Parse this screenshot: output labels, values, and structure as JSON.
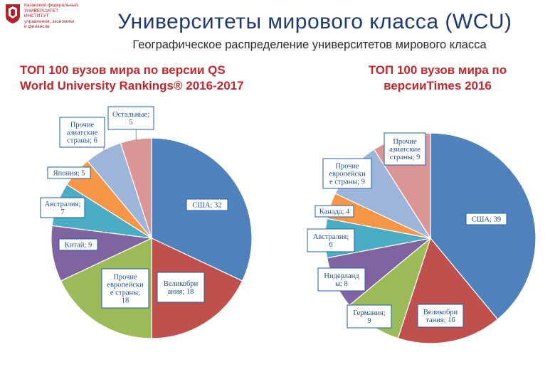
{
  "header": {
    "logo_text": "Казанский федеральный\nУНИВЕРСИТЕТ\nИНСТИТУТ\nуправления, экономики\nи финансов",
    "title": "Университеты мирового класса (WCU)",
    "subtitle": "Географическое распределение университетов мирового класса"
  },
  "colors": {
    "title": "#1f3a6e",
    "chart_title": "#c0282f",
    "label_border": "#1f5ea8",
    "slices": [
      "#4f81bd",
      "#c0504d",
      "#9bbb59",
      "#8064a2",
      "#4bacc6",
      "#f79646",
      "#9eb5da",
      "#d99694"
    ]
  },
  "chart_data": [
    {
      "type": "pie",
      "title": "ТОП 100 вузов мира по версии QS\nWorld University Rankings® 2016-2017",
      "slices": [
        {
          "label": "США",
          "value": 32,
          "data_label": "США; 32"
        },
        {
          "label": "Великобритания",
          "value": 18,
          "data_label": "Великобри\nания; 18"
        },
        {
          "label": "Прочие европейские страны",
          "value": 18,
          "data_label": "Прочие\nевропейски\nе страны;\n18"
        },
        {
          "label": "Китай",
          "value": 9,
          "data_label": "Китай; 9"
        },
        {
          "label": "Австралия",
          "value": 7,
          "data_label": "Австралия;\n7"
        },
        {
          "label": "Япония",
          "value": 5,
          "data_label": "Япония; 5"
        },
        {
          "label": "Прочие азиатские страны",
          "value": 6,
          "data_label": "Прочие\nазиатские\nстраны; 6"
        },
        {
          "label": "Остальные",
          "value": 5,
          "data_label": "Остальные;\n5"
        }
      ]
    },
    {
      "type": "pie",
      "title": "ТОП 100 вузов мира по\nверсииTimes 2016",
      "slices": [
        {
          "label": "США",
          "value": 39,
          "data_label": "США; 39"
        },
        {
          "label": "Великобритания",
          "value": 16,
          "data_label": "Великобри\nтания; 16"
        },
        {
          "label": "Германия",
          "value": 9,
          "data_label": "Германия;\n9"
        },
        {
          "label": "Нидерланды",
          "value": 8,
          "data_label": "Нидерланд\nы; 8"
        },
        {
          "label": "Австралия",
          "value": 6,
          "data_label": "Австралия;\n6"
        },
        {
          "label": "Канада",
          "value": 4,
          "data_label": "Канада; 4"
        },
        {
          "label": "Прочие европейские страны",
          "value": 9,
          "data_label": "Прочие\nевропейски\nе страны; 9"
        },
        {
          "label": "Прочие азиатские страны",
          "value": 9,
          "data_label": "Прочие\nазиатские\nстраны; 9"
        }
      ]
    }
  ]
}
